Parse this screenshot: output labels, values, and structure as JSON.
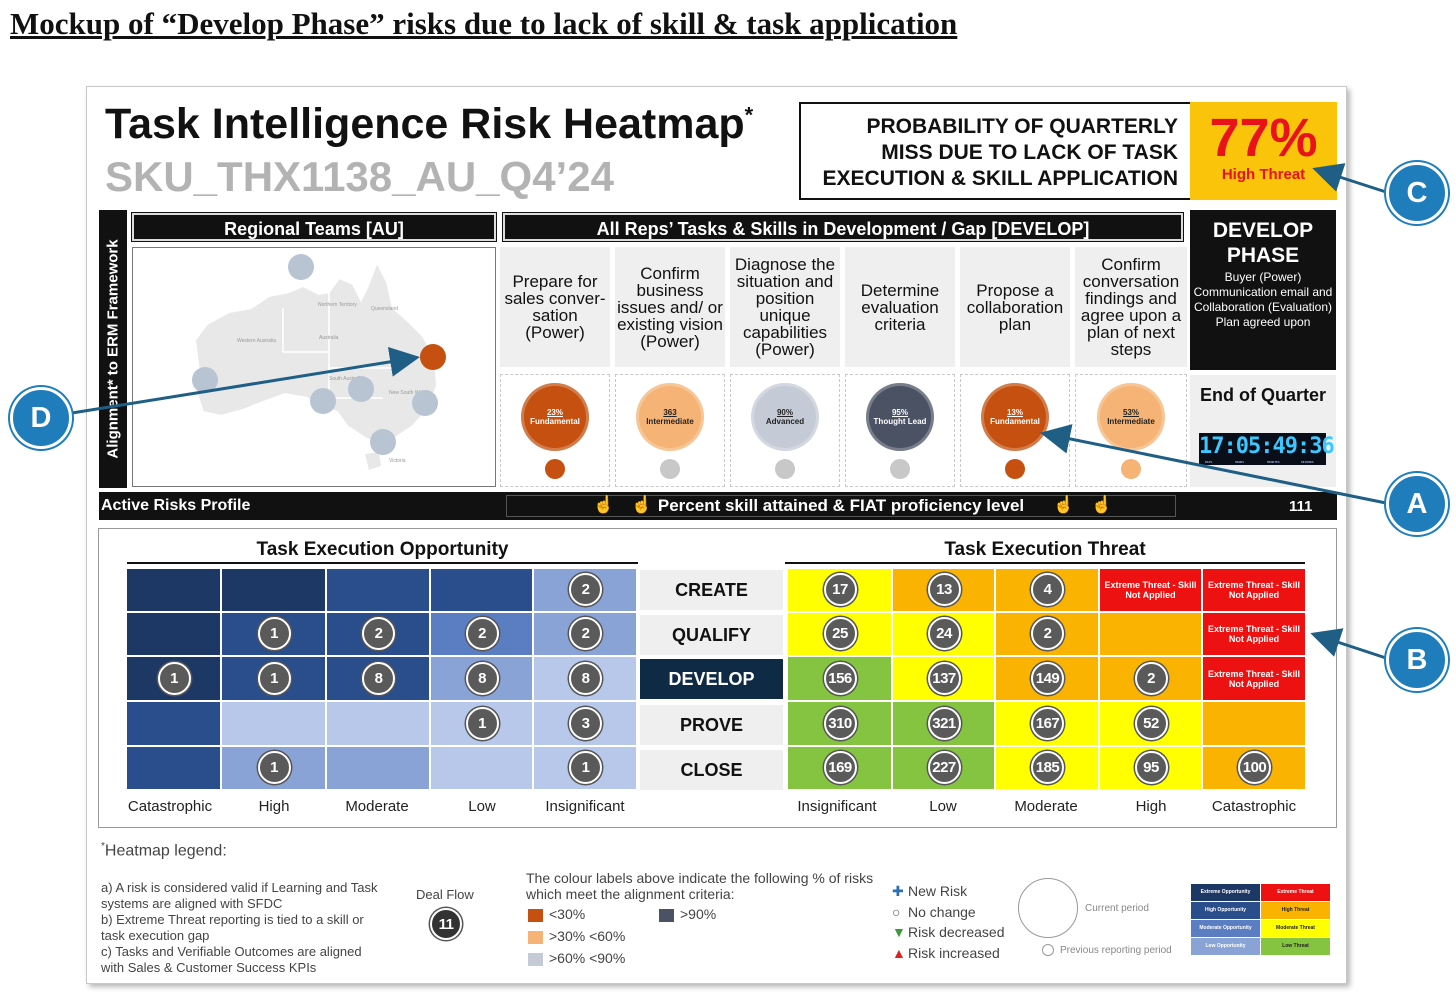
{
  "doc_title": "Mockup of “Develop Phase” risks due to lack of skill & task application",
  "header": {
    "title": "Task Intelligence Risk Heatmap",
    "title_mark": "*",
    "subtitle": "SKU_THX1138_AU_Q4’24"
  },
  "probability": {
    "lines": [
      "PROBABILITY OF QUARTERLY",
      "MISS DUE TO LACK OF TASK",
      "EXECUTION & SKILL APPLICATION"
    ],
    "value": "77%",
    "level": "High Threat"
  },
  "erm_label": "Alignment* to ERM Framework",
  "regional_header": "Regional Teams [AU]",
  "map_labels": [
    "Australia",
    "Northern Territory",
    "Queensland",
    "Western Australia",
    "South Australia",
    "New South Wales",
    "Victoria"
  ],
  "tasks_header": "All Reps’ Tasks & Skills in Development / Gap [DEVELOP]",
  "tasks": [
    {
      "label": "Prepare for sales conver- sation (Power)",
      "percent": "23%",
      "level": "Fundamental",
      "color": "#c5500f",
      "small_color": "#c5500f"
    },
    {
      "label": "Confirm business issues and/ or existing vision (Power)",
      "percent": "363",
      "level": "Intermediate",
      "color": "#f5b375",
      "small_color": "#c8c8c8"
    },
    {
      "label": "Diagnose the situation and position unique capabilities (Power)",
      "percent": "90%",
      "level": "Advanced",
      "color": "#c5cbd6",
      "small_color": "#c8c8c8"
    },
    {
      "label": "Determine evaluation criteria",
      "percent": "95%",
      "level": "Thought Lead",
      "color": "#4a5263",
      "small_color": "#c8c8c8"
    },
    {
      "label": "Propose a collaboration plan",
      "percent": "13%",
      "level": "Fundamental",
      "color": "#c5500f",
      "small_color": "#c5500f"
    },
    {
      "label": "Confirm conversation findings and agree upon a plan of next steps",
      "percent": "53%",
      "level": "Intermediate",
      "color": "#f5b375",
      "small_color": "#f5b375"
    }
  ],
  "develop_box": {
    "title": "DEVELOP PHASE",
    "desc": "Buyer (Power) Communication email and Collaboration (Evaluation) Plan agreed upon"
  },
  "end_of_quarter": {
    "label": "End of Quarter",
    "clock": "17:05:49:36",
    "units": [
      "DAYS",
      "HOURS",
      "MINUTES",
      "SECONDS"
    ]
  },
  "risk_bar": {
    "label": "Active Risks Profile",
    "center": "Percent skill attained & FIAT proficiency level",
    "count": "111"
  },
  "opportunity": {
    "title": "Task Execution Opportunity",
    "columns": [
      "Catastrophic",
      "High",
      "Moderate",
      "Low",
      "Insignificant"
    ],
    "rows": [
      {
        "colors": [
          "#1e3866",
          "#1e3866",
          "#2a4d8c",
          "#2a4d8c",
          "#8aa3d6"
        ],
        "values": [
          "",
          "",
          "",
          "",
          "2"
        ]
      },
      {
        "colors": [
          "#1e3866",
          "#2a4d8c",
          "#2a4d8c",
          "#5b7ec3",
          "#8aa3d6"
        ],
        "values": [
          "",
          "1",
          "2",
          "2",
          "2"
        ]
      },
      {
        "colors": [
          "#1e3866",
          "#2a4d8c",
          "#2a4d8c",
          "#8aa3d6",
          "#b7c8ea"
        ],
        "values": [
          "1",
          "1",
          "8",
          "8",
          "8"
        ]
      },
      {
        "colors": [
          "#2a4d8c",
          "#b7c8ea",
          "#b7c8ea",
          "#b7c8ea",
          "#b7c8ea"
        ],
        "values": [
          "",
          "",
          "",
          "1",
          "3"
        ]
      },
      {
        "colors": [
          "#2a4d8c",
          "#8aa3d6",
          "#8aa3d6",
          "#b7c8ea",
          "#b7c8ea"
        ],
        "values": [
          "",
          "1",
          "",
          "",
          "1"
        ]
      }
    ]
  },
  "phases": [
    "CREATE",
    "QUALIFY",
    "DEVELOP",
    "PROVE",
    "CLOSE"
  ],
  "active_phase": "DEVELOP",
  "threat": {
    "title": "Task Execution Threat",
    "columns": [
      "Insignificant",
      "Low",
      "Moderate",
      "High",
      "Catastrophic"
    ],
    "extreme_label": "Extreme Threat - Skill Not Applied",
    "rows": [
      {
        "colors": [
          "#ffff00",
          "#f9b300",
          "#f9b300",
          "#ee1111",
          "#ee1111"
        ],
        "values": [
          "17",
          "13",
          "4",
          "",
          ""
        ]
      },
      {
        "colors": [
          "#ffff00",
          "#ffff00",
          "#f9b300",
          "#f9b300",
          "#ee1111"
        ],
        "values": [
          "25",
          "24",
          "2",
          "",
          ""
        ]
      },
      {
        "colors": [
          "#85c441",
          "#ffff00",
          "#f9b300",
          "#f9b300",
          "#ee1111"
        ],
        "values": [
          "156",
          "137",
          "149",
          "2",
          ""
        ]
      },
      {
        "colors": [
          "#85c441",
          "#85c441",
          "#ffff00",
          "#ffff00",
          "#f9b300"
        ],
        "values": [
          "310",
          "321",
          "167",
          "52",
          ""
        ]
      },
      {
        "colors": [
          "#85c441",
          "#85c441",
          "#ffff00",
          "#ffff00",
          "#f9b300"
        ],
        "values": [
          "169",
          "227",
          "185",
          "95",
          "100"
        ]
      }
    ]
  },
  "legend": {
    "title": "Heatmap legend:",
    "notes": [
      "a)  A risk is considered valid if Learning and Task systems are aligned with SFDC",
      "b)  Extreme Threat reporting is tied to a skill or task execution gap",
      "c)  Tasks and Verifiable Outcomes are aligned with Sales & Customer Success KPIs"
    ],
    "deal_flow_label": "Deal Flow",
    "deal_flow_value": "11",
    "colour_caption": "The colour labels above indicate the following % of risks which meet the alignment criteria:",
    "colour_items": [
      {
        "label": "<30%",
        "color": "#c5500f"
      },
      {
        "label": ">90%",
        "color": "#4a5263"
      },
      {
        "label": ">30% <60%",
        "color": "#f5b375"
      },
      {
        "label": ">60% <90%",
        "color": "#c5cbd6"
      }
    ],
    "change_items": [
      {
        "symbol": "✚",
        "label": "New Risk",
        "color": "#2a6fb5"
      },
      {
        "symbol": "○",
        "label": "No change",
        "color": "#555"
      },
      {
        "symbol": "▼",
        "label": "Risk decreased",
        "color": "#3b9b3b"
      },
      {
        "symbol": "▲",
        "label": "Risk increased",
        "color": "#d22"
      }
    ],
    "current_period": "Current period",
    "previous_period": "Previous reporting period",
    "mini_key": [
      [
        "Extreme Opportunity",
        "Extreme Threat"
      ],
      [
        "High Opportunity",
        "High Threat"
      ],
      [
        "Moderate Opportunity",
        "Moderate Threat"
      ],
      [
        "Low Opportunity",
        "Low Threat"
      ]
    ]
  },
  "callouts": [
    "A",
    "B",
    "C",
    "D"
  ]
}
